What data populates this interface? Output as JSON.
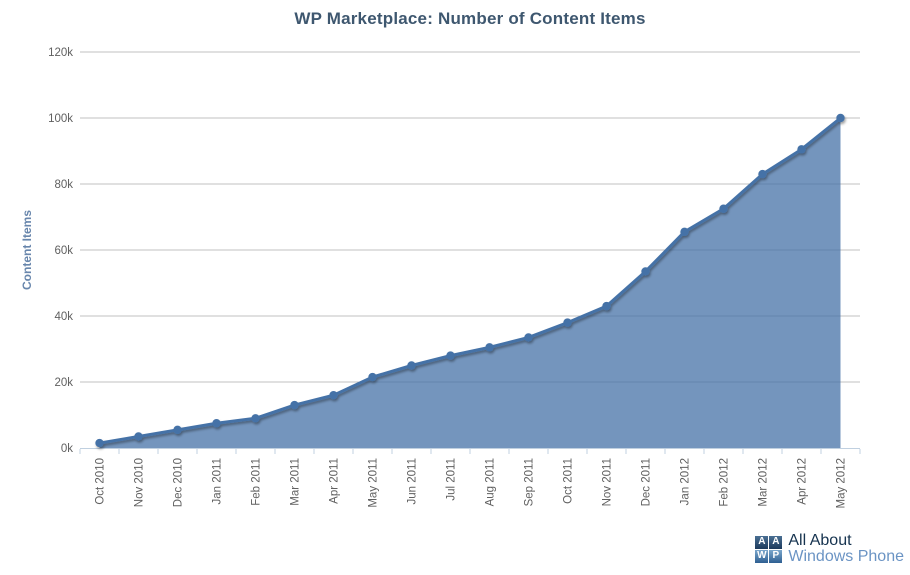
{
  "title": "WP Marketplace: Number of Content Items",
  "chart_data": {
    "type": "area",
    "title": "WP Marketplace: Number of Content Items",
    "xlabel": "",
    "ylabel": "Content Items",
    "categories": [
      "Oct 2010",
      "Nov 2010",
      "Dec 2010",
      "Jan 2011",
      "Feb 2011",
      "Mar 2011",
      "Apr 2011",
      "May 2011",
      "Jun 2011",
      "Jul 2011",
      "Aug 2011",
      "Sep 2011",
      "Oct 2011",
      "Nov 2011",
      "Dec 2011",
      "Jan 2012",
      "Feb 2012",
      "Mar 2012",
      "Apr 2012",
      "May 2012"
    ],
    "values": [
      1500,
      3500,
      5500,
      7500,
      9000,
      13000,
      16000,
      21500,
      25000,
      28000,
      30500,
      33500,
      38000,
      43000,
      53500,
      65500,
      72500,
      83000,
      90500,
      100000
    ],
    "ylim": [
      0,
      120
    ],
    "ytick_step": 20,
    "ytick_labels": [
      "0k",
      "20k",
      "40k",
      "60k",
      "80k",
      "100k",
      "120k"
    ],
    "grid": true,
    "legend": "none",
    "marker": "circle",
    "colors": {
      "series": "#4572A7",
      "fill_opacity": 0.75,
      "grid": "#C0C0C0",
      "axis_line": "#C0D0E0",
      "title": "#3E576F",
      "y_axis_title": "#6886AC",
      "tick_label": "#606060"
    }
  },
  "logo": {
    "letters": [
      "A",
      "A",
      "W",
      "P"
    ],
    "line1": "All About",
    "line2": "Windows Phone"
  }
}
